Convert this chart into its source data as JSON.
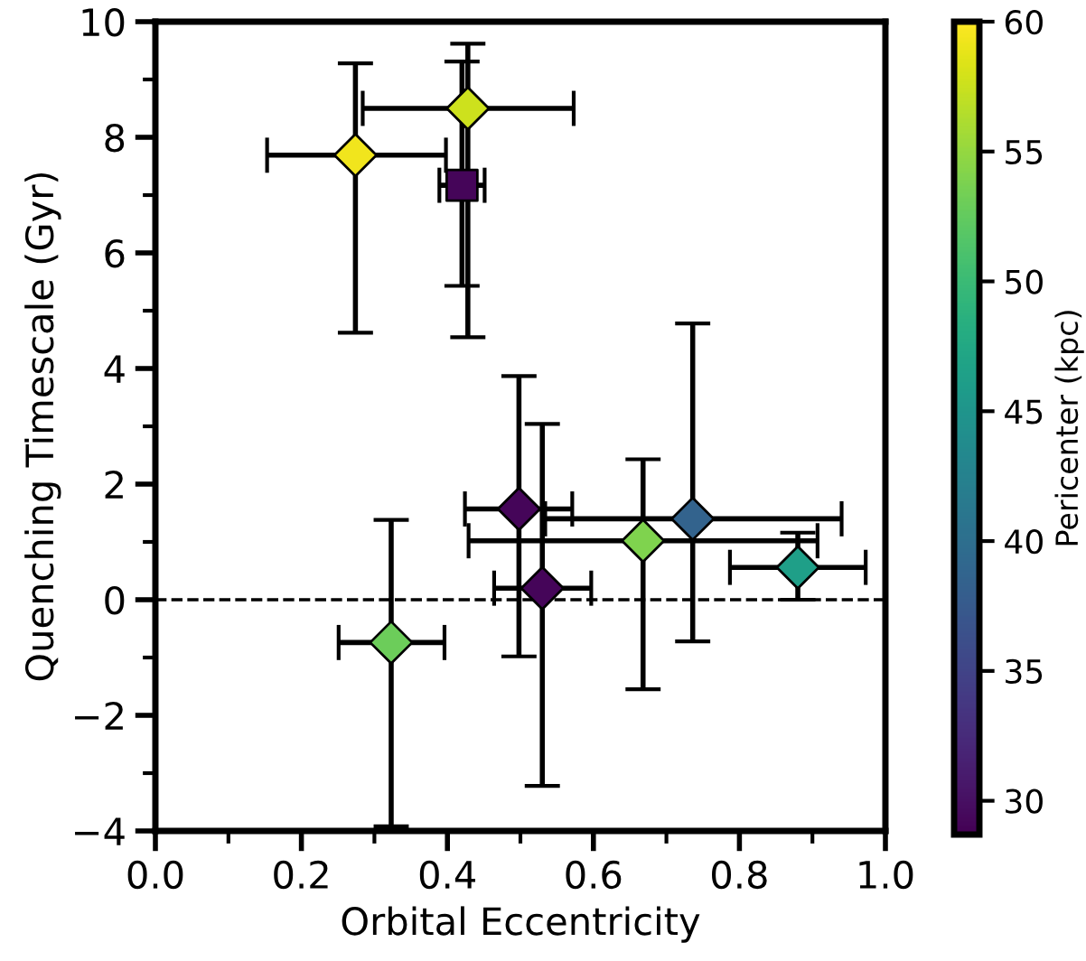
{
  "chart_data": {
    "type": "scatter",
    "xlabel": "Orbital Eccentricity",
    "ylabel": "Quenching Timescale (Gyr)",
    "clabel": "Pericenter (kpc)",
    "xlim": [
      0.0,
      1.0
    ],
    "xticks": [
      {
        "value": 0.0,
        "label": "0.0"
      },
      0.2,
      0.4,
      0.6,
      0.8,
      {
        "value": 1.0,
        "label": "1.0"
      }
    ],
    "ylim": [
      -4,
      10
    ],
    "yticks": [
      {
        "value": -4,
        "label": "−4"
      },
      {
        "value": -2,
        "label": "−2"
      },
      0,
      2,
      4,
      6,
      8,
      10
    ],
    "clim": [
      28.7,
      60
    ],
    "cticks": [
      30,
      35,
      40,
      45,
      50,
      55,
      60
    ],
    "ref_lines": [
      {
        "axis": "y",
        "value": 0,
        "color": "#000000",
        "line_style": "dashed"
      }
    ],
    "grid": false,
    "legend": false,
    "series": [
      {
        "marker": "diamond",
        "x": [
          0.274,
          0.428,
          0.498,
          0.53,
          0.668,
          0.736,
          0.88,
          0.323
        ],
        "values": [
          7.69,
          8.5,
          1.57,
          0.2,
          1.02,
          1.4,
          0.56,
          -0.74
        ],
        "colors": [
          "#f1e51d",
          "#cde11d",
          "#450559",
          "#450559",
          "#7fd34e",
          "#33638d",
          "#1f9f88",
          "#6ccd5a"
        ],
        "xerrors": [
          [
            0.153,
            0.398
          ],
          [
            0.284,
            0.573
          ],
          [
            0.424,
            0.571
          ],
          [
            0.464,
            0.597
          ],
          [
            0.429,
            0.907
          ],
          [
            0.534,
            0.94
          ],
          [
            0.787,
            0.973
          ],
          [
            0.251,
            0.396
          ]
        ],
        "errors": [
          [
            4.62,
            9.28
          ],
          [
            4.54,
            9.62
          ],
          [
            -0.98,
            3.87
          ],
          [
            -3.22,
            3.04
          ],
          [
            -1.55,
            2.43
          ],
          [
            -0.72,
            4.78
          ],
          [
            0.0,
            1.16
          ],
          [
            -3.92,
            1.38
          ]
        ]
      },
      {
        "marker": "square",
        "x": [
          0.42
        ],
        "values": [
          7.17
        ],
        "colors": [
          "#450559"
        ],
        "xerrors": [
          [
            0.389,
            0.451
          ]
        ],
        "errors": [
          [
            5.43,
            9.31
          ]
        ]
      }
    ]
  }
}
